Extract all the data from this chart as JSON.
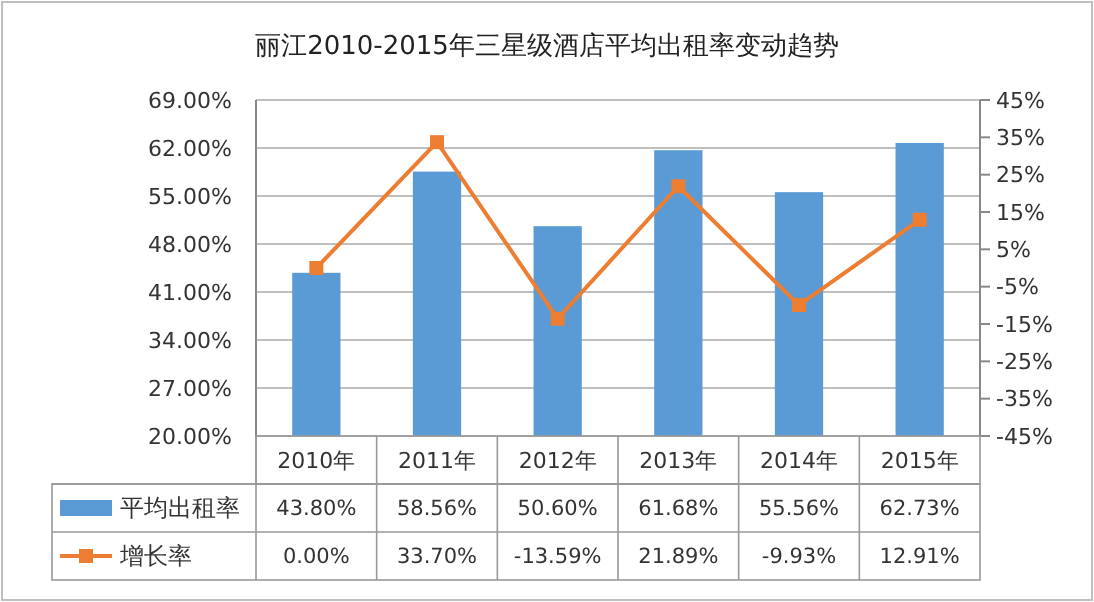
{
  "chart_data": {
    "type": "bar",
    "title": "丽江2010-2015年三星级酒店平均出租率变动趋势",
    "categories": [
      "2010年",
      "2011年",
      "2012年",
      "2013年",
      "2014年",
      "2015年"
    ],
    "series": [
      {
        "name": "平均出租率",
        "color": "#5b9bd5",
        "values": [
          43.8,
          58.56,
          50.6,
          61.68,
          55.56,
          62.73
        ],
        "value_labels": [
          "43.80%",
          "58.56%",
          "50.60%",
          "61.68%",
          "55.56%",
          "62.73%"
        ]
      },
      {
        "name": "增长率",
        "type": "line",
        "axis": "y2",
        "color": "#ed7d31",
        "marker": "square",
        "values": [
          0,
          33.7,
          -13.59,
          21.89,
          -9.93,
          12.91
        ],
        "value_labels": [
          "0.00%",
          "33.70%",
          "-13.59%",
          "21.89%",
          "-9.93%",
          "12.91%"
        ]
      }
    ],
    "ylim": [
      20,
      69
    ],
    "yticks": [
      {
        "value": 20,
        "label": "20.00%"
      },
      {
        "value": 27,
        "label": "27.00%"
      },
      {
        "value": 34,
        "label": "34.00%"
      },
      {
        "value": 41,
        "label": "41.00%"
      },
      {
        "value": 48,
        "label": "48.00%"
      },
      {
        "value": 55,
        "label": "55.00%"
      },
      {
        "value": 62,
        "label": "62.00%"
      },
      {
        "value": 69,
        "label": "69.00%"
      }
    ],
    "y2lim": [
      -45,
      45
    ],
    "y2ticks": [
      {
        "value": -45,
        "label": "-45%"
      },
      {
        "value": -35,
        "label": "-35%"
      },
      {
        "value": -25,
        "label": "-25%"
      },
      {
        "value": -15,
        "label": "-15%"
      },
      {
        "value": -5,
        "label": "-5%"
      },
      {
        "value": 5,
        "label": "5%"
      },
      {
        "value": 15,
        "label": "15%"
      },
      {
        "value": 25,
        "label": "25%"
      },
      {
        "value": 35,
        "label": "35%"
      },
      {
        "value": 45,
        "label": "45%"
      }
    ],
    "grid": "y",
    "legend": "bottom"
  }
}
